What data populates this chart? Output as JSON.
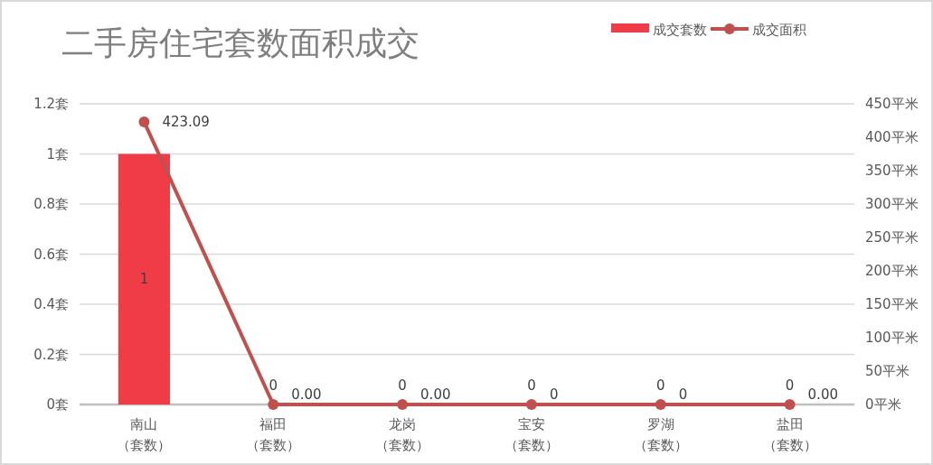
{
  "chart_data": {
    "type": "bar",
    "title": "二手房住宅套数面积成交",
    "categories": [
      "南山（套数）",
      "福田（套数）",
      "龙岗（套数）",
      "宝安（套数）",
      "罗湖（套数）",
      "盐田（套数）"
    ],
    "series": [
      {
        "name": "成交套数",
        "color": "#f03c46",
        "values": [
          1,
          0,
          0,
          0,
          0,
          0
        ],
        "value_labels": [
          "1",
          "0",
          "0",
          "0",
          "0",
          "0"
        ]
      },
      {
        "name": "成交面积",
        "type": "line",
        "axis": "y2",
        "color": "#c0504d",
        "marker": "circle",
        "values": [
          423.09,
          0,
          0,
          0,
          0,
          0
        ],
        "value_labels": [
          "423.09",
          "0.00",
          "0.00",
          "0",
          "0",
          "0.00"
        ]
      }
    ],
    "ylim": [
      0,
      1.2
    ],
    "yticks": [
      {
        "value": 0,
        "label": "0套"
      },
      {
        "value": 0.2,
        "label": "0.2套"
      },
      {
        "value": 0.4,
        "label": "0.4套"
      },
      {
        "value": 0.6,
        "label": "0.6套"
      },
      {
        "value": 0.8,
        "label": "0.8套"
      },
      {
        "value": 1,
        "label": "1套"
      },
      {
        "value": 1.2,
        "label": "1.2套"
      }
    ],
    "y2lim": [
      0,
      450
    ],
    "y2ticks": [
      {
        "value": 0,
        "label": "0平米"
      },
      {
        "value": 50,
        "label": "50平米"
      },
      {
        "value": 100,
        "label": "100平米"
      },
      {
        "value": 150,
        "label": "150平米"
      },
      {
        "value": 200,
        "label": "200平米"
      },
      {
        "value": 250,
        "label": "250平米"
      },
      {
        "value": 300,
        "label": "300平米"
      },
      {
        "value": 350,
        "label": "350平米"
      },
      {
        "value": 400,
        "label": "400平米"
      },
      {
        "value": 450,
        "label": "450平米"
      }
    ],
    "grid": "y",
    "legend": "top right"
  }
}
